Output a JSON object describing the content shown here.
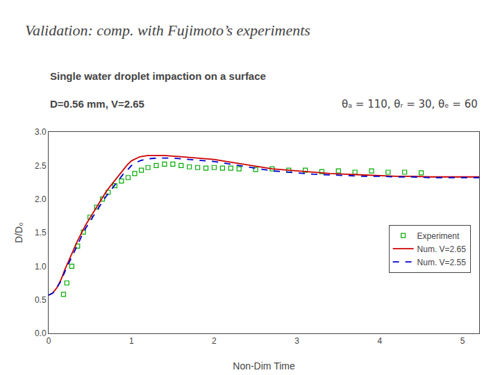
{
  "chart_data": {
    "type": "line",
    "title": "Validation: comp. with Fujimoto’s experiments",
    "subtitle": [
      "Single water droplet impaction on a surface",
      "D=0.56 mm, V=2.65"
    ],
    "annotations": [
      "θₐ = 110, θᵣ = 30, θₑ = 60"
    ],
    "x_label": "Non-Dim Time",
    "y_label": "D/D₀",
    "xlim": [
      0,
      5.2
    ],
    "ylim": [
      0,
      3.0
    ],
    "xticks": [
      0,
      1,
      2,
      3,
      4,
      5
    ],
    "yticks": [
      {
        "value": 0,
        "label": "0.0"
      },
      0.5,
      {
        "value": 1,
        "label": "1.0"
      },
      1.5,
      {
        "value": 2,
        "label": "2.0"
      },
      2.5,
      {
        "value": 3,
        "label": "3.0"
      }
    ],
    "grid": false,
    "legend": "right",
    "series": [
      {
        "name": "Experiment",
        "type": "scatter",
        "marker": "square",
        "color": "#00AA00",
        "x": [
          0.18,
          0.22,
          0.28,
          0.35,
          0.42,
          0.5,
          0.58,
          0.65,
          0.72,
          0.8,
          0.88,
          0.96,
          1.04,
          1.12,
          1.2,
          1.3,
          1.4,
          1.5,
          1.6,
          1.7,
          1.8,
          1.9,
          2.0,
          2.1,
          2.2,
          2.3,
          2.5,
          2.7,
          2.9,
          3.1,
          3.3,
          3.5,
          3.7,
          3.9,
          4.1,
          4.3,
          4.5
        ],
        "values": [
          0.58,
          0.75,
          1.0,
          1.3,
          1.51,
          1.73,
          1.88,
          2.0,
          2.1,
          2.2,
          2.27,
          2.32,
          2.38,
          2.43,
          2.47,
          2.5,
          2.52,
          2.52,
          2.5,
          2.48,
          2.47,
          2.46,
          2.47,
          2.46,
          2.46,
          2.45,
          2.44,
          2.45,
          2.43,
          2.43,
          2.41,
          2.42,
          2.4,
          2.42,
          2.4,
          2.4,
          2.39
        ]
      },
      {
        "name": "Num. V=2.65",
        "type": "line",
        "line_style": "solid",
        "color": "#CC0000",
        "x": [
          0.0,
          0.05,
          0.1,
          0.15,
          0.2,
          0.25,
          0.3,
          0.35,
          0.4,
          0.45,
          0.5,
          0.55,
          0.6,
          0.65,
          0.7,
          0.75,
          0.8,
          0.85,
          0.9,
          0.95,
          1.0,
          1.1,
          1.2,
          1.3,
          1.4,
          1.5,
          1.6,
          1.7,
          1.8,
          1.9,
          2.0,
          2.1,
          2.2,
          2.3,
          2.4,
          2.5,
          2.6,
          2.7,
          2.8,
          2.9,
          3.0,
          3.2,
          3.4,
          3.6,
          3.8,
          4.0,
          4.2,
          4.4,
          4.6,
          4.8,
          5.0,
          5.2
        ],
        "values": [
          0.57,
          0.6,
          0.68,
          0.8,
          0.96,
          1.1,
          1.25,
          1.38,
          1.5,
          1.62,
          1.72,
          1.82,
          1.92,
          2.02,
          2.12,
          2.2,
          2.28,
          2.36,
          2.44,
          2.51,
          2.57,
          2.63,
          2.65,
          2.65,
          2.65,
          2.64,
          2.63,
          2.62,
          2.61,
          2.6,
          2.59,
          2.57,
          2.55,
          2.53,
          2.51,
          2.49,
          2.47,
          2.45,
          2.44,
          2.43,
          2.42,
          2.4,
          2.38,
          2.37,
          2.36,
          2.35,
          2.34,
          2.34,
          2.33,
          2.33,
          2.33,
          2.33
        ]
      },
      {
        "name": "Num. V=2.55",
        "type": "line",
        "line_style": "dashed",
        "color": "#0000CC",
        "x": [
          0.0,
          0.05,
          0.1,
          0.15,
          0.2,
          0.25,
          0.3,
          0.35,
          0.4,
          0.45,
          0.5,
          0.55,
          0.6,
          0.65,
          0.7,
          0.75,
          0.8,
          0.85,
          0.9,
          0.95,
          1.0,
          1.1,
          1.2,
          1.3,
          1.4,
          1.5,
          1.6,
          1.7,
          1.8,
          1.9,
          2.0,
          2.1,
          2.2,
          2.3,
          2.4,
          2.5,
          2.6,
          2.7,
          2.8,
          2.9,
          3.0,
          3.2,
          3.4,
          3.6,
          3.8,
          4.0,
          4.2,
          4.4,
          4.6,
          4.8,
          5.0,
          5.2
        ],
        "values": [
          0.57,
          0.6,
          0.68,
          0.78,
          0.93,
          1.06,
          1.2,
          1.33,
          1.45,
          1.57,
          1.67,
          1.77,
          1.87,
          1.96,
          2.05,
          2.13,
          2.22,
          2.29,
          2.37,
          2.43,
          2.5,
          2.57,
          2.6,
          2.61,
          2.61,
          2.61,
          2.6,
          2.59,
          2.58,
          2.57,
          2.56,
          2.54,
          2.52,
          2.5,
          2.48,
          2.46,
          2.44,
          2.42,
          2.41,
          2.4,
          2.39,
          2.37,
          2.36,
          2.35,
          2.34,
          2.34,
          2.33,
          2.33,
          2.32,
          2.32,
          2.32,
          2.32
        ]
      }
    ]
  }
}
